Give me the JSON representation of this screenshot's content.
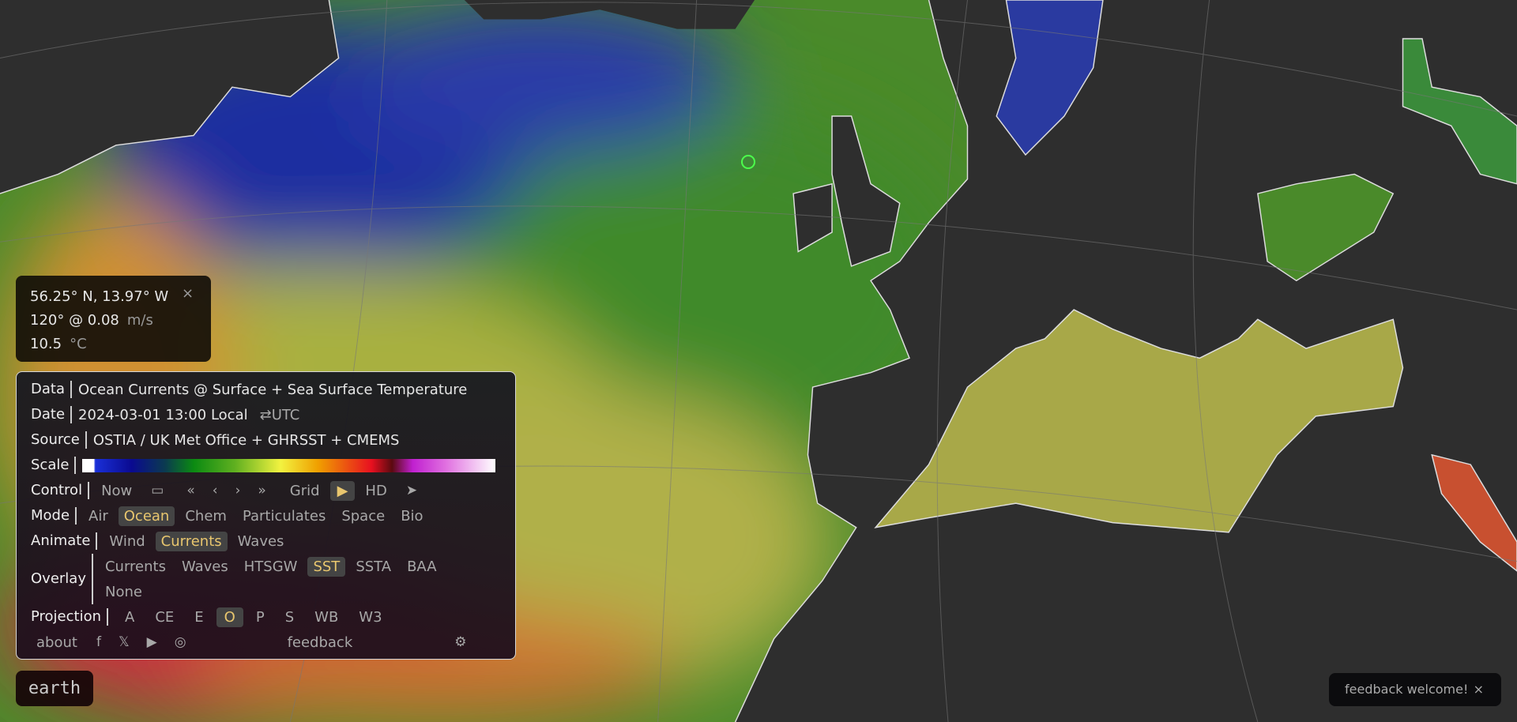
{
  "colors": {
    "accent": "#e8c66e",
    "marker": "#4cff4c",
    "land": "#2e2e2e"
  },
  "tooltip": {
    "coords": "56.25° N, 13.97° W",
    "close": "×",
    "current": "120° @ 0.08",
    "current_unit": "m/s",
    "temp": "10.5",
    "temp_unit": "°C"
  },
  "panel": {
    "data_label": "Data",
    "data_value": "Ocean Currents @ Surface + Sea Surface Temperature",
    "date_label": "Date",
    "date_value": "2024-03-01 13:00 Local",
    "date_toggle": "⇄UTC",
    "source_label": "Source",
    "source_value": "OSTIA / UK Met Office + GHRSST + CMEMS",
    "scale_label": "Scale",
    "control_label": "Control",
    "control": {
      "now": "Now",
      "calendar": "calendar-icon",
      "grid": "Grid",
      "play": "play-icon",
      "hd": "HD",
      "locate": "location-arrow-icon",
      "play_active": true
    },
    "mode_label": "Mode",
    "modes": [
      "Air",
      "Ocean",
      "Chem",
      "Particulates",
      "Space",
      "Bio"
    ],
    "mode_active": "Ocean",
    "animate_label": "Animate",
    "animates": [
      "Wind",
      "Currents",
      "Waves"
    ],
    "animate_active": "Currents",
    "overlay_label": "Overlay",
    "overlays": [
      "Currents",
      "Waves",
      "HTSGW",
      "SST",
      "SSTA",
      "BAA",
      "None"
    ],
    "overlay_active": "SST",
    "projection_label": "Projection",
    "projections": [
      "A",
      "CE",
      "E",
      "O",
      "P",
      "S",
      "WB",
      "W3"
    ],
    "projection_active": "O",
    "footer": {
      "about": "about",
      "feedback": "feedback",
      "icons": [
        "facebook-icon",
        "x-icon",
        "youtube-icon",
        "instagram-icon",
        "gear-icon"
      ]
    }
  },
  "earth_button": "earth",
  "toast": {
    "text": "feedback welcome!",
    "close": "×"
  }
}
